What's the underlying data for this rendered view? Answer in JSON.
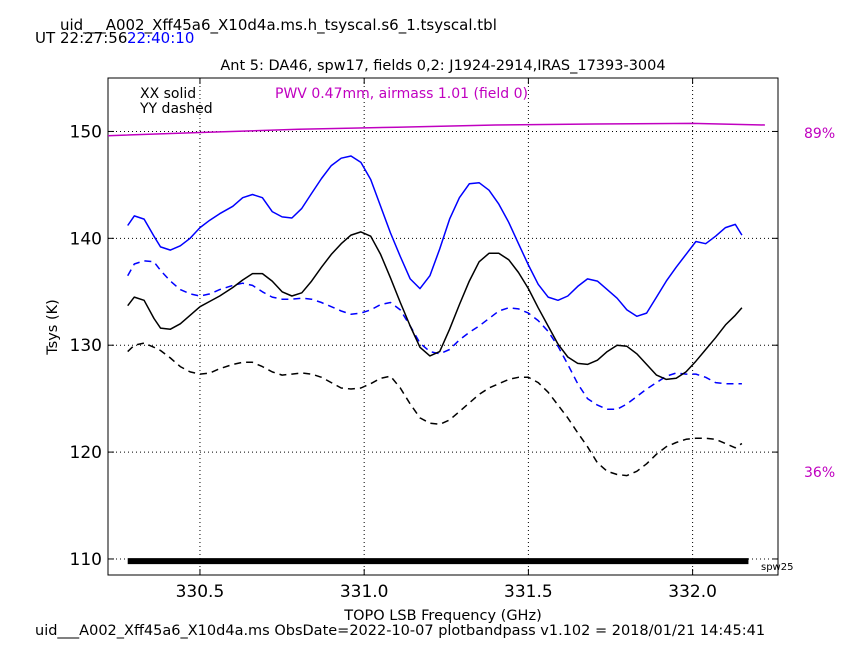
{
  "header": {
    "table_name": "uid___A002_Xff45a6_X10d4a.ms.h_tsyscal.s6_1.tsyscal.tbl",
    "ut_label": "UT",
    "ut_start": "22:27:56",
    "ut_end": "22:40:10"
  },
  "footer": {
    "caption": "uid___A002_Xff45a6_X10d4a.ms  ObsDate=2022-10-07   plotbandpass v1.102 = 2018/01/21 14:45:41"
  },
  "colors": {
    "xx_spw": "#0000ff",
    "pwv": "#c000c0",
    "data": "#000000"
  },
  "chart_data": {
    "type": "line",
    "title": "Ant 5: DA46,  spw17,  fields 0,2: J1924-2914,IRAS_17393-3004",
    "xlabel": "TOPO LSB Frequency (GHz)",
    "ylabel": "Tsys (K)",
    "xlim": [
      330.22,
      332.26
    ],
    "ylim": [
      108.5,
      155.0
    ],
    "xticks": [
      330.5,
      331.0,
      331.5,
      332.0
    ],
    "xtick_labels": [
      "330.5",
      "331.0",
      "331.5",
      "332.0"
    ],
    "yticks": [
      110,
      120,
      130,
      140,
      150
    ],
    "ytick_labels": [
      "110",
      "120",
      "130",
      "140",
      "150"
    ],
    "grid": true,
    "legend_lines": [
      "XX solid",
      "YY dashed"
    ],
    "pwv_annotation": "PWV 0.47mm, airmass 1.01 (field 0)",
    "transmission_axis": {
      "top_label": "89%",
      "top_value": 89,
      "bottom_label": "36%",
      "bottom_value": 36
    },
    "spw_bar": {
      "label": "spw25",
      "x_start": 330.28,
      "x_end": 332.17,
      "y": 109.8
    },
    "series": [
      {
        "field": "blue-xx",
        "color": "#0000ff",
        "dash": false,
        "x": [
          330.28,
          330.3,
          330.33,
          330.36,
          330.38,
          330.41,
          330.44,
          330.47,
          330.5,
          330.53,
          330.56,
          330.6,
          330.63,
          330.66,
          330.69,
          330.72,
          330.75,
          330.78,
          330.81,
          330.84,
          330.87,
          330.9,
          330.93,
          330.96,
          330.99,
          331.02,
          331.05,
          331.08,
          331.11,
          331.14,
          331.17,
          331.2,
          331.23,
          331.26,
          331.29,
          331.32,
          331.35,
          331.38,
          331.41,
          331.44,
          331.47,
          331.5,
          331.53,
          331.56,
          331.59,
          331.62,
          331.65,
          331.68,
          331.71,
          331.74,
          331.77,
          331.8,
          331.83,
          331.86,
          331.89,
          331.92,
          331.95,
          331.98,
          332.01,
          332.04,
          332.07,
          332.1,
          332.13,
          332.15
        ],
        "y": [
          141.2,
          142.1,
          141.8,
          140.2,
          139.2,
          138.9,
          139.3,
          140.0,
          141.0,
          141.7,
          142.3,
          143.0,
          143.8,
          144.1,
          143.8,
          142.5,
          142.0,
          141.9,
          142.8,
          144.2,
          145.6,
          146.8,
          147.5,
          147.7,
          147.1,
          145.5,
          143.0,
          140.5,
          138.3,
          136.2,
          135.3,
          136.5,
          139.0,
          141.8,
          143.8,
          145.1,
          145.2,
          144.5,
          143.2,
          141.5,
          139.5,
          137.5,
          135.7,
          134.5,
          134.2,
          134.6,
          135.5,
          136.2,
          136.0,
          135.2,
          134.4,
          133.3,
          132.7,
          133.0,
          134.5,
          136.0,
          137.3,
          138.5,
          139.7,
          139.5,
          140.2,
          141.0,
          141.3,
          140.3
        ]
      },
      {
        "field": "blue-yy",
        "color": "#0000ff",
        "dash": true,
        "x": [
          330.28,
          330.3,
          330.33,
          330.36,
          330.38,
          330.41,
          330.44,
          330.47,
          330.5,
          330.53,
          330.56,
          330.6,
          330.63,
          330.66,
          330.69,
          330.72,
          330.75,
          330.78,
          330.81,
          330.84,
          330.87,
          330.9,
          330.93,
          330.96,
          330.99,
          331.02,
          331.05,
          331.08,
          331.11,
          331.14,
          331.17,
          331.2,
          331.23,
          331.26,
          331.29,
          331.32,
          331.35,
          331.38,
          331.41,
          331.44,
          331.47,
          331.5,
          331.53,
          331.56,
          331.59,
          331.62,
          331.65,
          331.68,
          331.71,
          331.74,
          331.77,
          331.8,
          331.83,
          331.86,
          331.89,
          331.92,
          331.95,
          331.98,
          332.01,
          332.04,
          332.07,
          332.1,
          332.13,
          332.15
        ],
        "y": [
          136.5,
          137.6,
          137.9,
          137.8,
          137.0,
          136.0,
          135.2,
          134.8,
          134.6,
          134.8,
          135.2,
          135.6,
          135.8,
          135.6,
          135.0,
          134.5,
          134.3,
          134.3,
          134.4,
          134.3,
          134.0,
          133.6,
          133.2,
          132.9,
          133.0,
          133.3,
          133.8,
          134.0,
          133.3,
          131.8,
          130.2,
          129.4,
          129.2,
          129.6,
          130.5,
          131.2,
          131.8,
          132.5,
          133.2,
          133.5,
          133.4,
          133.0,
          132.3,
          131.3,
          129.9,
          128.2,
          126.4,
          125.0,
          124.4,
          124.0,
          124.0,
          124.5,
          125.2,
          125.9,
          126.5,
          127.1,
          127.4,
          127.3,
          127.3,
          127.0,
          126.5,
          126.4,
          126.4,
          126.4
        ]
      },
      {
        "field": "black-xx",
        "color": "#000000",
        "dash": false,
        "x": [
          330.28,
          330.3,
          330.33,
          330.36,
          330.38,
          330.41,
          330.44,
          330.47,
          330.5,
          330.53,
          330.56,
          330.6,
          330.63,
          330.66,
          330.69,
          330.72,
          330.75,
          330.78,
          330.81,
          330.84,
          330.87,
          330.9,
          330.93,
          330.96,
          330.99,
          331.02,
          331.05,
          331.08,
          331.11,
          331.14,
          331.17,
          331.2,
          331.23,
          331.26,
          331.29,
          331.32,
          331.35,
          331.38,
          331.41,
          331.44,
          331.47,
          331.5,
          331.53,
          331.56,
          331.59,
          331.62,
          331.65,
          331.68,
          331.71,
          331.74,
          331.77,
          331.8,
          331.83,
          331.86,
          331.89,
          331.92,
          331.95,
          331.98,
          332.01,
          332.04,
          332.07,
          332.1,
          332.13,
          332.15
        ],
        "y": [
          133.7,
          134.5,
          134.2,
          132.5,
          131.6,
          131.5,
          132.0,
          132.8,
          133.6,
          134.1,
          134.6,
          135.4,
          136.1,
          136.7,
          136.7,
          136.0,
          135.0,
          134.6,
          134.9,
          136.0,
          137.3,
          138.5,
          139.5,
          140.3,
          140.6,
          140.2,
          138.5,
          136.3,
          134.0,
          131.8,
          129.8,
          129.0,
          129.4,
          131.5,
          133.8,
          136.0,
          137.8,
          138.6,
          138.6,
          138.0,
          136.8,
          135.3,
          133.5,
          131.8,
          130.1,
          128.9,
          128.3,
          128.2,
          128.6,
          129.4,
          130.0,
          129.9,
          129.2,
          128.2,
          127.2,
          126.8,
          126.9,
          127.5,
          128.5,
          129.6,
          130.7,
          131.9,
          132.8,
          133.5
        ]
      },
      {
        "field": "black-yy",
        "color": "#000000",
        "dash": true,
        "x": [
          330.28,
          330.3,
          330.33,
          330.36,
          330.38,
          330.41,
          330.44,
          330.47,
          330.5,
          330.53,
          330.56,
          330.6,
          330.63,
          330.66,
          330.69,
          330.72,
          330.75,
          330.78,
          330.81,
          330.84,
          330.87,
          330.9,
          330.93,
          330.96,
          330.99,
          331.02,
          331.05,
          331.08,
          331.11,
          331.14,
          331.17,
          331.2,
          331.23,
          331.26,
          331.29,
          331.32,
          331.35,
          331.38,
          331.41,
          331.44,
          331.47,
          331.5,
          331.53,
          331.56,
          331.59,
          331.62,
          331.65,
          331.68,
          331.71,
          331.74,
          331.77,
          331.8,
          331.83,
          331.86,
          331.89,
          331.92,
          331.95,
          331.98,
          332.01,
          332.04,
          332.07,
          332.1,
          332.13,
          332.15
        ],
        "y": [
          129.4,
          130.0,
          130.2,
          129.8,
          129.5,
          128.8,
          128.0,
          127.5,
          127.3,
          127.4,
          127.8,
          128.2,
          128.4,
          128.4,
          128.0,
          127.5,
          127.2,
          127.3,
          127.4,
          127.3,
          127.0,
          126.5,
          126.0,
          125.9,
          126.0,
          126.4,
          126.9,
          127.1,
          126.0,
          124.5,
          123.2,
          122.7,
          122.6,
          123.0,
          123.8,
          124.6,
          125.4,
          126.0,
          126.4,
          126.8,
          127.0,
          127.0,
          126.5,
          125.6,
          124.4,
          123.2,
          121.8,
          120.5,
          119.0,
          118.2,
          117.9,
          117.8,
          118.2,
          118.9,
          119.8,
          120.5,
          120.9,
          121.2,
          121.3,
          121.3,
          121.2,
          120.8,
          120.4,
          120.8
        ]
      },
      {
        "field": "pwv-transmission",
        "color": "#c000c0",
        "dash": false,
        "x": [
          330.22,
          330.5,
          330.8,
          331.1,
          331.4,
          331.7,
          332.0,
          332.22
        ],
        "y": [
          149.6,
          149.9,
          150.2,
          150.4,
          150.6,
          150.7,
          150.75,
          150.6
        ]
      }
    ]
  }
}
